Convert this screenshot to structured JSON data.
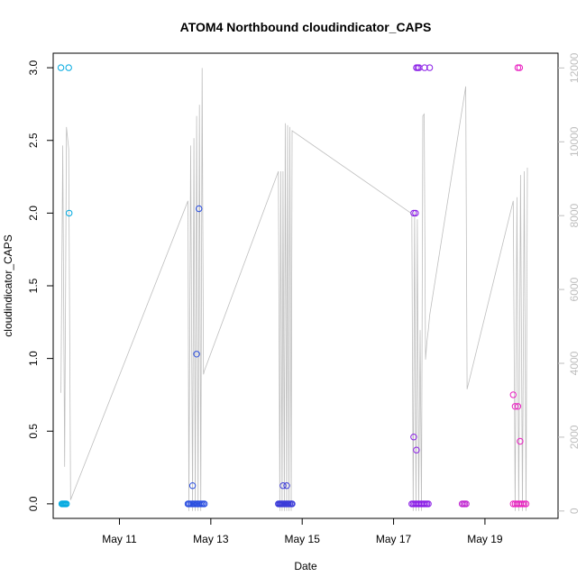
{
  "chart_data": {
    "type": "scatter",
    "title": "ATOM4 Northbound cloudindicator_CAPS",
    "xlabel": "Date",
    "ylabel": "cloudindicator_CAPS",
    "x_unit": "days (May)",
    "xlim": [
      9.55,
      20.6
    ],
    "ylim": [
      -0.1,
      3.1
    ],
    "x_ticks": [
      {
        "value": 11,
        "label": "May 11"
      },
      {
        "value": 13,
        "label": "May 13"
      },
      {
        "value": 15,
        "label": "May 15"
      },
      {
        "value": 17,
        "label": "May 17"
      },
      {
        "value": 19,
        "label": "May 19"
      }
    ],
    "y_ticks": [
      {
        "value": 0,
        "label": "0.0"
      },
      {
        "value": 0.5,
        "label": "0.5"
      },
      {
        "value": 1,
        "label": "1.0"
      },
      {
        "value": 1.5,
        "label": "1.5"
      },
      {
        "value": 2,
        "label": "2.0"
      },
      {
        "value": 2.5,
        "label": "2.5"
      },
      {
        "value": 3,
        "label": "3.0"
      }
    ],
    "secondary_axis": {
      "ylim": [
        -200,
        12400
      ],
      "ticks": [
        {
          "value": 0,
          "label": "0"
        },
        {
          "value": 2000,
          "label": "2000"
        },
        {
          "value": 4000,
          "label": "4000"
        },
        {
          "value": 6000,
          "label": "6000"
        },
        {
          "value": 8000,
          "label": "8000"
        },
        {
          "value": 10000,
          "label": "10000"
        },
        {
          "value": 12000,
          "label": "12000"
        }
      ],
      "color": "#bebebe"
    },
    "line_series": {
      "color": "#bebebe",
      "x": [
        9.72,
        9.76,
        9.8,
        9.84,
        9.89,
        9.93,
        12.5,
        12.52,
        12.56,
        12.6,
        12.63,
        12.66,
        12.69,
        12.72,
        12.75,
        12.78,
        12.81,
        12.84,
        12.86,
        14.48,
        14.51,
        14.53,
        14.56,
        14.58,
        14.61,
        14.63,
        14.66,
        14.68,
        14.71,
        14.73,
        14.76,
        14.78,
        17.4,
        17.43,
        17.46,
        17.49,
        17.52,
        17.55,
        17.58,
        17.61,
        17.64,
        17.67,
        17.7,
        17.73,
        17.76,
        17.79,
        18.58,
        18.61,
        19.62,
        19.66,
        19.7,
        19.74,
        19.78,
        19.82,
        19.86,
        19.9,
        19.93
      ],
      "y": [
        3200,
        9900,
        1200,
        10400,
        9800,
        300,
        8400,
        0,
        9900,
        0,
        10100,
        0,
        10700,
        0,
        11000,
        0,
        12000,
        3700,
        3800,
        9200,
        0,
        9200,
        0,
        9200,
        0,
        10500,
        0,
        10450,
        0,
        10400,
        0,
        10300,
        8050,
        0,
        8100,
        0,
        7900,
        0,
        4900,
        0,
        10700,
        10750,
        4100,
        4600,
        4900,
        5300,
        11500,
        3300,
        8400,
        0,
        8500,
        0,
        9100,
        0,
        9200,
        0,
        9300
      ]
    },
    "series": [
      {
        "color": "#00a9e0",
        "x": [
          9.72,
          9.74,
          9.76,
          9.78,
          9.8,
          9.82,
          9.84,
          9.89,
          9.9
        ],
        "y": [
          3.0,
          0.0,
          0.0,
          0.0,
          0.0,
          0.0,
          0.0,
          3.0,
          2.0
        ]
      },
      {
        "color": "#2a4ee0",
        "x": [
          12.5,
          12.52,
          12.55,
          12.58,
          12.61,
          12.63,
          12.66,
          12.69,
          12.71,
          12.74,
          12.77,
          12.8,
          12.83,
          12.86,
          12.6,
          12.69,
          12.74
        ],
        "y": [
          0.0,
          0.0,
          0.0,
          0.0,
          0.0,
          0.0,
          0.0,
          0.0,
          0.0,
          0.0,
          0.0,
          0.0,
          0.0,
          0.0,
          0.125,
          1.03,
          2.03
        ]
      },
      {
        "color": "#3a3ad8",
        "x": [
          14.48,
          14.5,
          14.52,
          14.54,
          14.56,
          14.58,
          14.6,
          14.62,
          14.64,
          14.66,
          14.68,
          14.7,
          14.73,
          14.76,
          14.78,
          14.58,
          14.66
        ],
        "y": [
          0.0,
          0.0,
          0.0,
          0.0,
          0.0,
          0.0,
          0.0,
          0.0,
          0.0,
          0.0,
          0.0,
          0.0,
          0.0,
          0.0,
          0.0,
          0.125,
          0.125
        ]
      },
      {
        "color": "#8b1fe6",
        "x": [
          17.4,
          17.43,
          17.46,
          17.49,
          17.52,
          17.55,
          17.58,
          17.61,
          17.64,
          17.67,
          17.7,
          17.73,
          17.76,
          17.44,
          17.5,
          17.44,
          17.48,
          17.5,
          17.53,
          17.56,
          17.68,
          17.79
        ],
        "y": [
          0.0,
          0.0,
          0.0,
          0.0,
          0.0,
          0.0,
          0.0,
          0.0,
          0.0,
          0.0,
          0.0,
          0.0,
          0.0,
          0.46,
          0.37,
          2.0,
          2.0,
          3.0,
          3.0,
          3.0,
          3.0,
          3.0
        ]
      },
      {
        "color": "#c026d0",
        "x": [
          18.5,
          18.53,
          18.56,
          18.59
        ],
        "y": [
          0.0,
          0.0,
          0.0,
          0.0
        ]
      },
      {
        "color": "#e91ec0",
        "x": [
          19.62,
          19.66,
          19.7,
          19.74,
          19.78,
          19.82,
          19.86,
          19.9,
          19.62,
          19.66,
          19.72,
          19.77,
          19.72,
          19.76
        ],
        "y": [
          0.0,
          0.0,
          0.0,
          0.0,
          0.0,
          0.0,
          0.0,
          0.0,
          0.75,
          0.67,
          0.67,
          0.43,
          3.0,
          3.0
        ]
      }
    ],
    "grid": false,
    "legend": "none"
  }
}
